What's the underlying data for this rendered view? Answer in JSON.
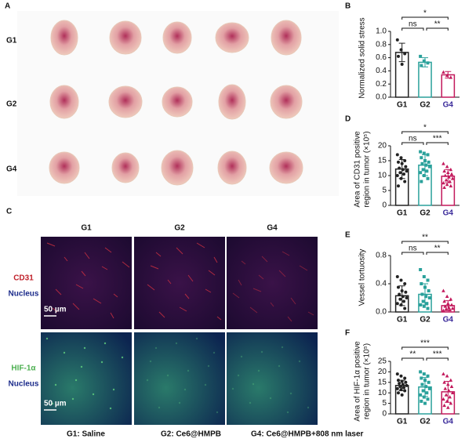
{
  "panels": {
    "A": {
      "label": "A",
      "rows": [
        "G1",
        "G2",
        "G4"
      ]
    },
    "C": {
      "label": "C",
      "columns": [
        "G1",
        "G2",
        "G4"
      ],
      "rows": [
        {
          "stain": "CD31",
          "counter": "Nucleus",
          "scale": "50 µm"
        },
        {
          "stain": "HIF-1α",
          "counter": "Nucleus",
          "scale": "50 µm"
        }
      ],
      "legend": [
        "G1: Saline",
        "G2: Ce6@HMPB",
        "G4: Ce6@HMPB+808 nm laser"
      ]
    }
  },
  "chart_data": [
    {
      "type": "bar",
      "label": "B",
      "y_label": [
        "Normalized solid stress"
      ],
      "categories": [
        "G1",
        "G2",
        "G4"
      ],
      "colors": [
        "#222222",
        "#2aa19b",
        "#c2185b"
      ],
      "values": [
        0.68,
        0.53,
        0.34
      ],
      "errors": [
        0.14,
        0.07,
        0.05
      ],
      "points": [
        [
          0.87,
          0.72,
          0.66,
          0.62,
          0.5
        ],
        [
          0.62,
          0.55,
          0.52,
          0.48
        ],
        [
          0.38,
          0.33,
          0.3
        ]
      ],
      "ylim": [
        0,
        1.0
      ],
      "yticks": [
        {
          "value": 0,
          "label": "0.0"
        },
        0.2,
        0.4,
        0.6,
        0.8,
        {
          "value": 1,
          "label": "1.0"
        }
      ],
      "significance": [
        {
          "from": 0,
          "to": 2,
          "label": "*"
        },
        {
          "from": 0,
          "to": 1,
          "label": "ns"
        },
        {
          "from": 1,
          "to": 2,
          "label": "**"
        }
      ]
    },
    {
      "type": "bar",
      "label": "D",
      "y_label": [
        "Area of CD31 positive",
        "region in tumor (×10⁵)"
      ],
      "categories": [
        "G1",
        "G2",
        "G4"
      ],
      "colors": [
        "#222222",
        "#2aa19b",
        "#c2185b"
      ],
      "values": [
        12.2,
        13.5,
        9.8
      ],
      "errors": [
        3.2,
        3.5,
        2.2
      ],
      "points": [
        [
          17,
          16,
          15,
          14.5,
          14,
          13,
          12.5,
          12,
          11.5,
          11,
          10.5,
          10,
          9,
          8,
          6.5
        ],
        [
          18,
          17.5,
          17,
          16,
          15,
          14.5,
          14,
          13.5,
          13,
          12,
          11.5,
          11,
          10,
          9,
          8
        ],
        [
          14,
          13,
          12,
          11.5,
          11,
          10.5,
          10,
          9.5,
          9,
          8.5,
          8,
          7.5,
          7,
          6.5,
          6
        ]
      ],
      "ylim": [
        0,
        20
      ],
      "yticks": [
        0,
        5,
        10,
        15,
        20
      ],
      "significance": [
        {
          "from": 0,
          "to": 2,
          "label": "*"
        },
        {
          "from": 0,
          "to": 1,
          "label": "ns"
        },
        {
          "from": 1,
          "to": 2,
          "label": "***"
        }
      ]
    },
    {
      "type": "bar",
      "label": "E",
      "y_label": [
        "Vessel tortuosity"
      ],
      "categories": [
        "G1",
        "G2",
        "G4"
      ],
      "colors": [
        "#222222",
        "#2aa19b",
        "#c2185b"
      ],
      "values": [
        0.23,
        0.25,
        0.09
      ],
      "errors": [
        0.14,
        0.15,
        0.07
      ],
      "points": [
        [
          0.5,
          0.45,
          0.4,
          0.35,
          0.3,
          0.28,
          0.25,
          0.22,
          0.2,
          0.18,
          0.15,
          0.12,
          0.1,
          0.05
        ],
        [
          0.6,
          0.5,
          0.45,
          0.4,
          0.35,
          0.3,
          0.25,
          0.22,
          0.2,
          0.15,
          0.12,
          0.1,
          0.08,
          0.05
        ],
        [
          0.3,
          0.22,
          0.18,
          0.15,
          0.12,
          0.1,
          0.08,
          0.06,
          0.05,
          0.04,
          0.03,
          0.02
        ]
      ],
      "ylim": [
        0,
        0.8
      ],
      "yticks": [
        {
          "value": 0,
          "label": "0.0"
        },
        0.4,
        0.8
      ],
      "significance": [
        {
          "from": 0,
          "to": 2,
          "label": "**"
        },
        {
          "from": 0,
          "to": 1,
          "label": "ns"
        },
        {
          "from": 1,
          "to": 2,
          "label": "**"
        }
      ]
    },
    {
      "type": "bar",
      "label": "F",
      "y_label": [
        "Area of HIF-1α positive",
        "region in tumor (×10⁵)"
      ],
      "categories": [
        "G1",
        "G2",
        "G4"
      ],
      "colors": [
        "#222222",
        "#2aa19b",
        "#c2185b"
      ],
      "values": [
        13.5,
        12.8,
        10.5
      ],
      "errors": [
        2.5,
        4.5,
        5
      ],
      "points": [
        [
          19,
          18,
          17,
          16,
          15.5,
          15,
          14.5,
          14,
          13.5,
          13,
          12.5,
          12,
          11.5,
          11,
          10,
          9
        ],
        [
          20,
          19,
          18,
          17,
          16,
          15,
          14,
          13,
          12,
          11,
          10,
          9,
          8,
          7,
          6,
          5
        ],
        [
          19,
          18,
          16,
          15,
          14,
          13,
          12,
          11,
          10,
          9,
          8,
          7,
          6,
          5,
          4,
          3
        ]
      ],
      "ylim": [
        0,
        25
      ],
      "yticks": [
        0,
        5,
        10,
        15,
        20,
        25
      ],
      "significance": [
        {
          "from": 0,
          "to": 2,
          "label": "***"
        },
        {
          "from": 0,
          "to": 1,
          "label": "**"
        },
        {
          "from": 1,
          "to": 2,
          "label": "***"
        }
      ]
    }
  ]
}
